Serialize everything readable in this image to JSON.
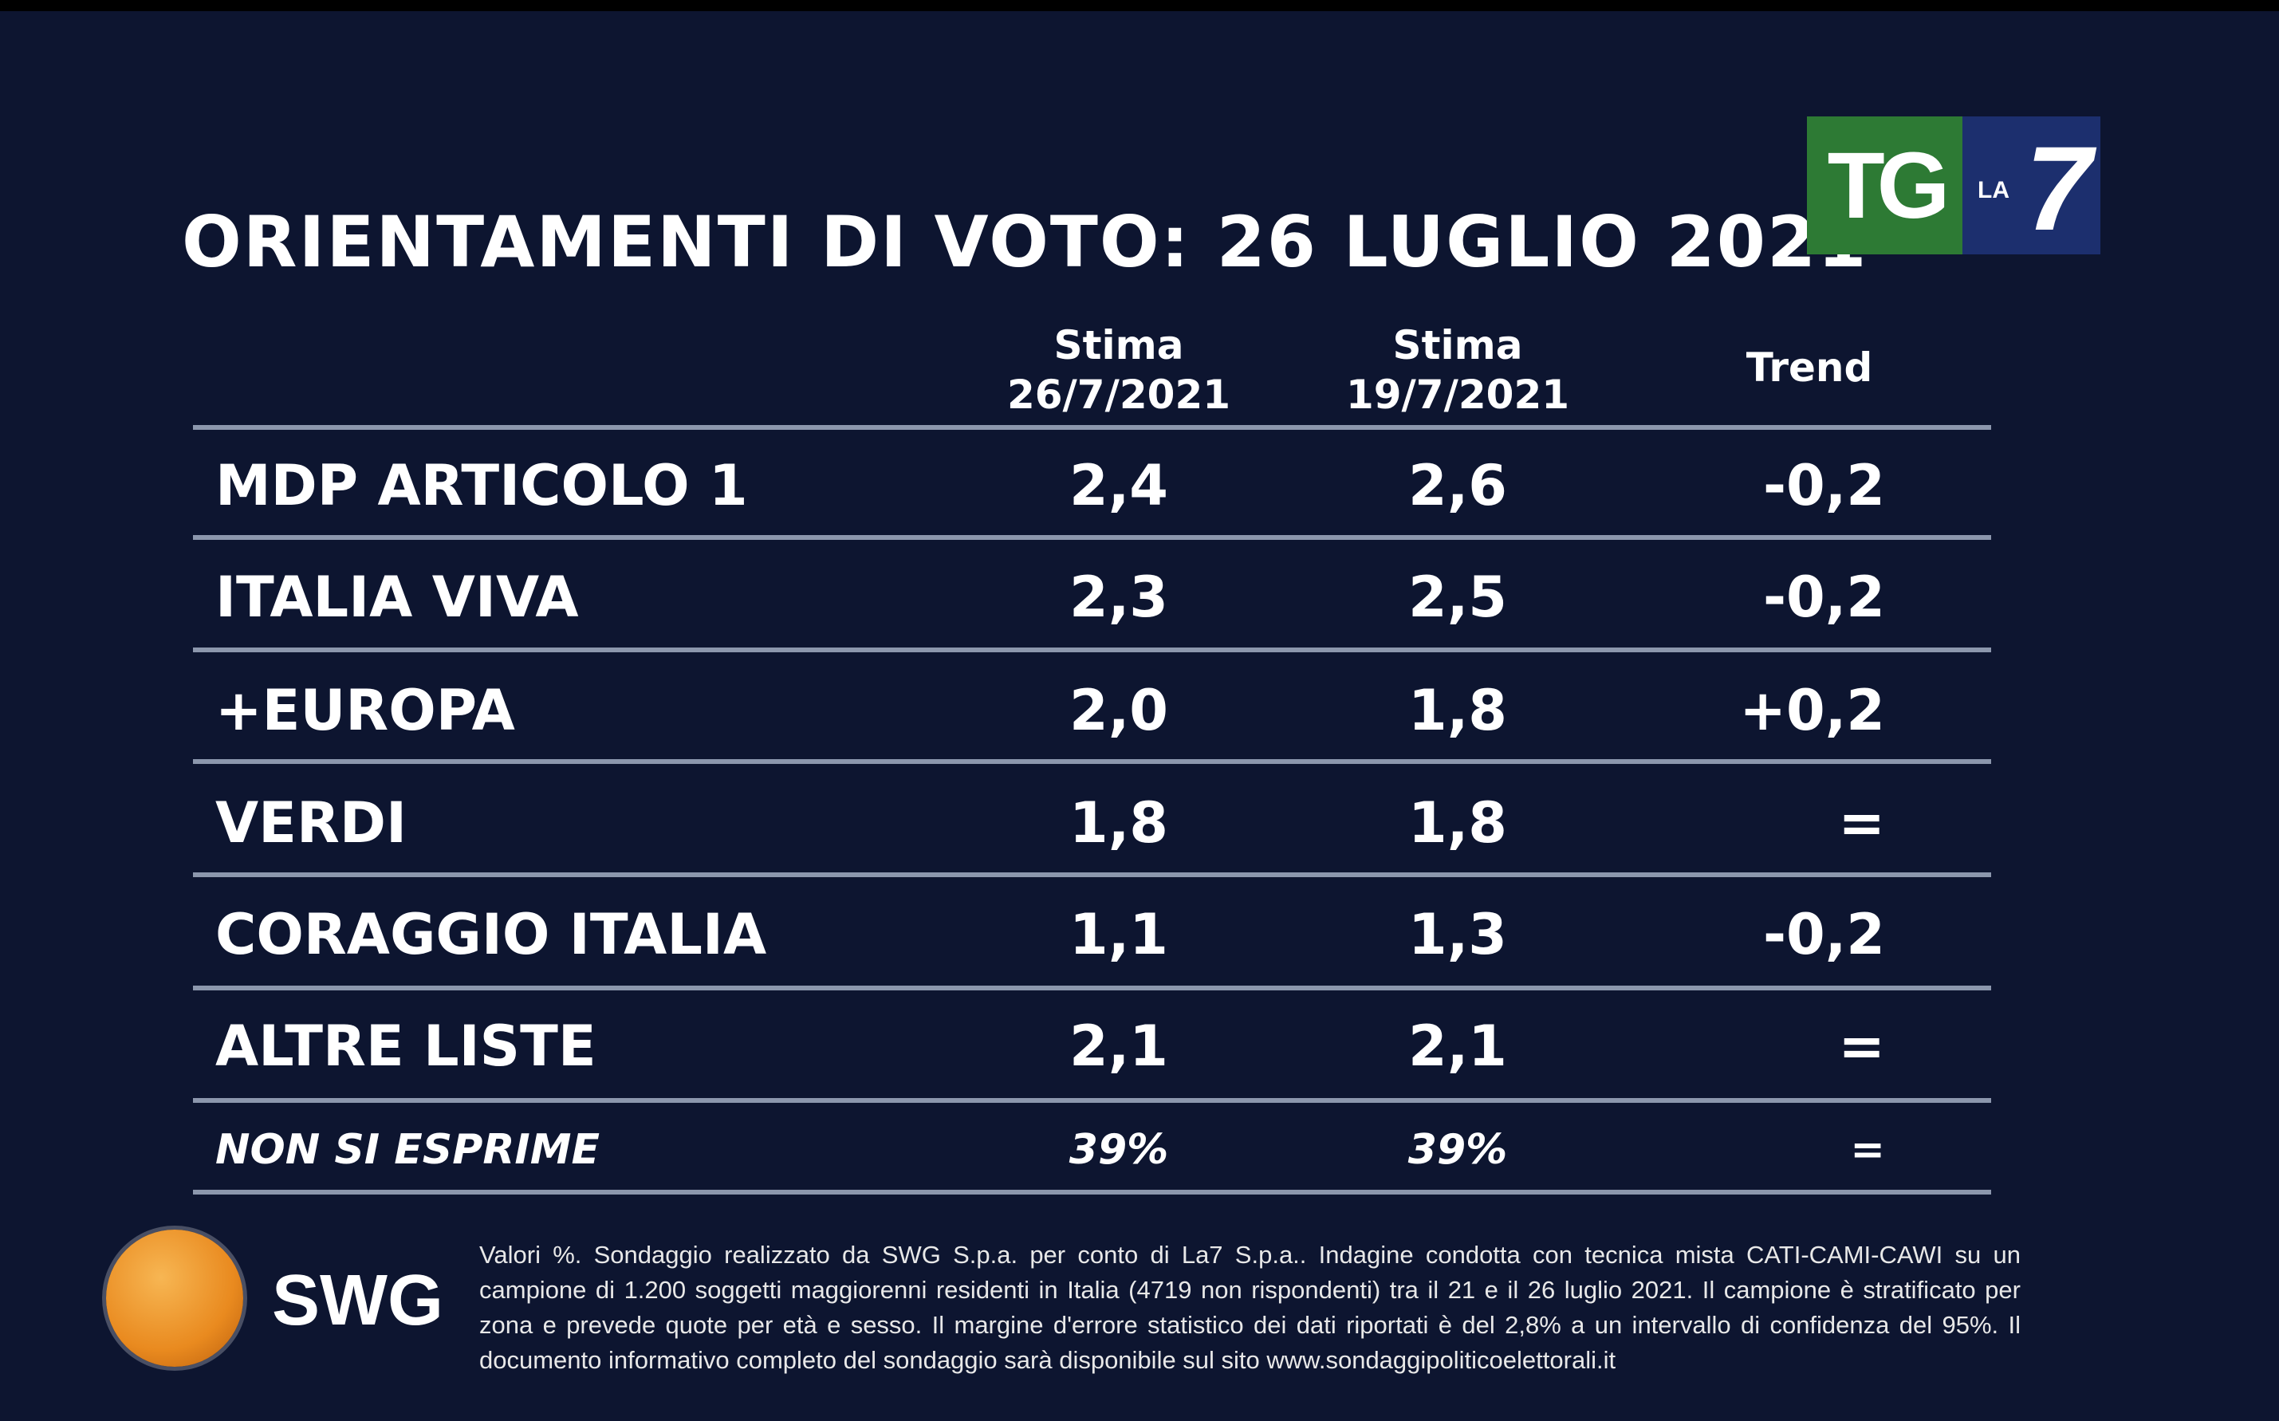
{
  "header": {
    "title": "ORIENTAMENTI DI VOTO: 26 LUGLIO 2021"
  },
  "logo": {
    "tg": "TG",
    "la": "LA",
    "seven": "7"
  },
  "table": {
    "columns": [
      [
        "Stima",
        "26/7/2021"
      ],
      [
        "Stima",
        "19/7/2021"
      ],
      [
        "Trend"
      ]
    ],
    "rows": [
      [
        "MDP ARTICOLO 1",
        "2,4",
        "2,6",
        "-0,2"
      ],
      [
        "ITALIA VIVA",
        "2,3",
        "2,5",
        "-0,2"
      ],
      [
        "+EUROPA",
        "2,0",
        "1,8",
        "+0,2"
      ],
      [
        "VERDI",
        "1,8",
        "1,8",
        "="
      ],
      [
        "CORAGGIO ITALIA",
        "1,1",
        "1,3",
        "-0,2"
      ],
      [
        "ALTRE LISTE",
        "2,1",
        "2,1",
        "="
      ],
      [
        "NON SI ESPRIME",
        "39%",
        "39%",
        "="
      ]
    ]
  },
  "footer": {
    "source_logo": "SWG",
    "note": "Valori %. Sondaggio realizzato da SWG S.p.a. per conto di La7 S.p.a.. Indagine condotta con tecnica mista CATI-CAMI-CAWI su un campione di 1.200 soggetti maggiorenni residenti in Italia (4719 non rispondenti) tra il 21 e il 26 luglio 2021. Il campione è stratificato per zona e prevede quote per età e sesso. Il margine d'errore statistico dei dati riportati è del 2,8% a un intervallo di confidenza del 95%. Il documento informativo completo del sondaggio sarà disponibile sul sito www.sondaggipoliticoelettorali.it"
  }
}
